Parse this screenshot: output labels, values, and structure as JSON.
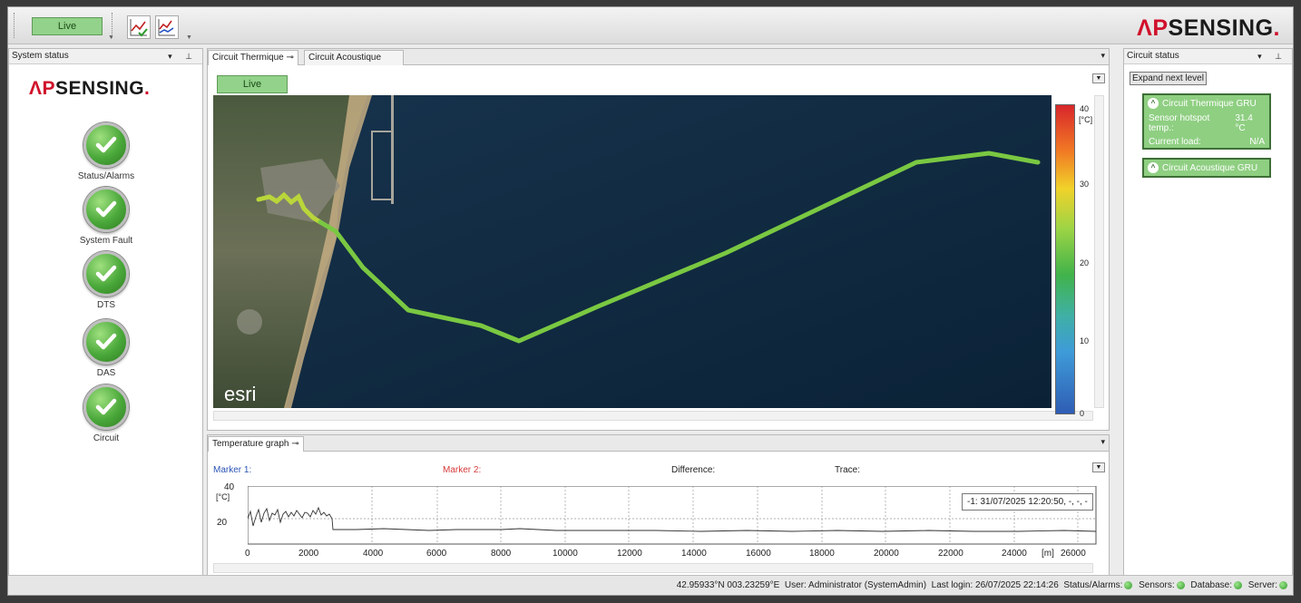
{
  "toolbar": {
    "live_label": "Live",
    "logo": {
      "ap": "ΛP",
      "rest": "SENSING",
      "dot": "."
    }
  },
  "system_status": {
    "title": "System status",
    "logo": {
      "ap": "ΛP",
      "rest": "SENSING",
      "dot": "."
    },
    "items": [
      {
        "label": "Status/Alarms",
        "state": "ok"
      },
      {
        "label": "System Fault",
        "state": "ok"
      },
      {
        "label": "DTS",
        "state": "ok"
      },
      {
        "label": "DAS",
        "state": "ok"
      },
      {
        "label": "Circuit",
        "state": "ok"
      }
    ]
  },
  "main": {
    "tabs": [
      {
        "label": "Circuit Thermique",
        "active": true
      },
      {
        "label": "Circuit Acoustique",
        "active": false
      }
    ],
    "live_label": "Live",
    "map": {
      "attribution": "esri",
      "colorbar": {
        "ticks": [
          "40",
          "30",
          "20",
          "10",
          "0"
        ],
        "unit": "[°C]"
      }
    }
  },
  "temperature_graph": {
    "title": "Temperature graph",
    "marker1_label": "Marker 1:",
    "marker2_label": "Marker 2:",
    "difference_label": "Difference:",
    "trace_label": "Trace:",
    "tooltip": "-1: 31/07/2025 12:20:50, -, -, -",
    "y_ticks": [
      "40",
      "20"
    ],
    "y_unit": "[°C]",
    "x_ticks": [
      "0",
      "2000",
      "4000",
      "6000",
      "8000",
      "10000",
      "12000",
      "14000",
      "16000",
      "18000",
      "20000",
      "22000",
      "24000",
      "26000"
    ],
    "x_unit": "[m]",
    "colors": {
      "marker1": "#2a54b5",
      "marker2": "#d63a3a"
    }
  },
  "circuit_status": {
    "title": "Circuit status",
    "expand_label": "Expand next level",
    "circuits": [
      {
        "name": "Circuit Thermique GRU",
        "rows": [
          {
            "key": "Sensor hotspot temp.:",
            "value": "31.4 °C"
          },
          {
            "key": "Current load:",
            "value": "N/A"
          }
        ]
      },
      {
        "name": "Circuit Acoustique GRU",
        "rows": []
      }
    ]
  },
  "statusbar": {
    "coords": "42.95933°N 003.23259°E",
    "user": "User: Administrator (SystemAdmin)",
    "last_login": "Last login: 26/07/2025 22:14:26",
    "indicators": [
      "Status/Alarms:",
      "Sensors:",
      "Database:",
      "Server:"
    ]
  }
}
